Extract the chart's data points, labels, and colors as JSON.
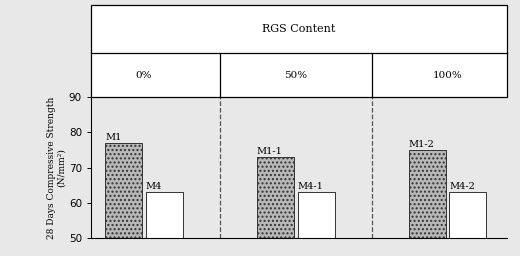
{
  "groups": [
    "0%",
    "50%",
    "100%"
  ],
  "bar_labels_m1": [
    "M1",
    "M1-1",
    "M1-2"
  ],
  "bar_labels_m4": [
    "M4",
    "M4-1",
    "M4-2"
  ],
  "values_m1": [
    77,
    73,
    75
  ],
  "values_m4": [
    63,
    63,
    63
  ],
  "ylim": [
    50,
    90
  ],
  "yticks": [
    50,
    60,
    70,
    80,
    90
  ],
  "ylabel": "28 Days Compressive Strength\n(N/mm²)",
  "header_title": "RGS Content",
  "bar_width": 0.28,
  "hatch_pattern": "....",
  "m1_color": "#b8b8b8",
  "m4_color": "#ffffff",
  "edge_color": "#333333",
  "bg_color": "#e8e8e8",
  "dashed_line_color": "#555555",
  "font_size_labels": 7,
  "font_size_ylabel": 6.5,
  "font_size_header": 8,
  "font_size_ticks": 7.5
}
